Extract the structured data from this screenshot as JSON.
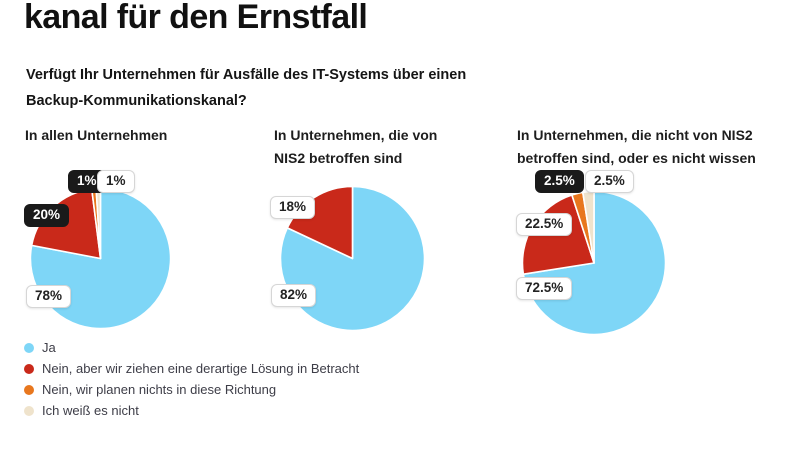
{
  "header": {
    "title": "kanal für den Ernstfall",
    "question_lines": [
      "Verfügt Ihr Unternehmen für Ausfälle des IT-Systems über einen",
      "Backup-Kommunikationskanal?"
    ]
  },
  "chart_data": [
    {
      "type": "pie",
      "title_lines": [
        "In allen Unternehmen"
      ],
      "start_angle_deg": 0,
      "direction": "clockwise",
      "slices": [
        {
          "name": "Ja",
          "value": 78,
          "label": "78%",
          "color": "#7ED6F7"
        },
        {
          "name": "Nein, aber wir ziehen eine derartige Lösung in Betracht",
          "value": 20,
          "label": "20%",
          "color": "#C9291A"
        },
        {
          "name": "Nein, wir planen nichts in diese Richtung",
          "value": 1,
          "label": "1%",
          "color": "#E8771E"
        },
        {
          "name": "Ich weiß es nicht",
          "value": 1,
          "label": "1%",
          "color": "#EFE3CC"
        }
      ]
    },
    {
      "type": "pie",
      "title_lines": [
        "In Unternehmen, die von",
        "NIS2 betroffen sind"
      ],
      "start_angle_deg": 0,
      "direction": "clockwise",
      "slices": [
        {
          "name": "Ja",
          "value": 82,
          "label": "82%",
          "color": "#7ED6F7"
        },
        {
          "name": "Nein, aber wir ziehen eine derartige Lösung in Betracht",
          "value": 18,
          "label": "18%",
          "color": "#C9291A"
        }
      ]
    },
    {
      "type": "pie",
      "title_lines": [
        "In Unternehmen, die nicht von NIS2",
        "betroffen sind, oder es nicht wissen"
      ],
      "start_angle_deg": 0,
      "direction": "clockwise",
      "slices": [
        {
          "name": "Ja",
          "value": 72.5,
          "label": "72.5%",
          "color": "#7ED6F7"
        },
        {
          "name": "Nein, aber wir ziehen eine derartige Lösung in Betracht",
          "value": 22.5,
          "label": "22.5%",
          "color": "#C9291A"
        },
        {
          "name": "Nein, wir planen nichts in diese Richtung",
          "value": 2.5,
          "label": "2.5%",
          "color": "#E8771E"
        },
        {
          "name": "Ich weiß es nicht",
          "value": 2.5,
          "label": "2.5%",
          "color": "#EFE3CC"
        }
      ]
    }
  ],
  "legend": {
    "items": [
      {
        "label": "Ja",
        "color": "#7ED6F7"
      },
      {
        "label": "Nein, aber wir ziehen eine derartige Lösung in Betracht",
        "color": "#C9291A"
      },
      {
        "label": "Nein, wir planen nichts in diese Richtung",
        "color": "#E8771E"
      },
      {
        "label": "Ich weiß es nicht",
        "color": "#EFE3CC"
      }
    ]
  }
}
